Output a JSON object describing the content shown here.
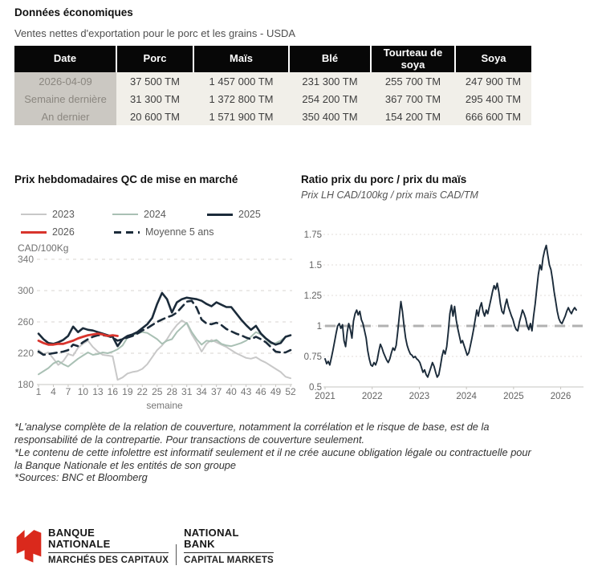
{
  "page": {
    "title": "Données économiques",
    "subtitle": "Ventes nettes d'exportation pour le porc et les grains - USDA"
  },
  "table": {
    "headers": [
      "Date",
      "Porc",
      "Maïs",
      "Blé",
      "Tourteau de soya",
      "Soya"
    ],
    "rows": [
      [
        "2026-04-09",
        "37 500 TM",
        "1 457 000 TM",
        "231 300 TM",
        "255 700 TM",
        "247 900 TM"
      ],
      [
        "Semaine dernière",
        "31 300 TM",
        "1 372 800 TM",
        "254 200 TM",
        "367 700 TM",
        "295 400 TM"
      ],
      [
        "An dernier",
        "20 600 TM",
        "1 571 900 TM",
        "350 400 TM",
        "154 200 TM",
        "666 600 TM"
      ]
    ]
  },
  "chart_data": [
    {
      "type": "line",
      "title": "Prix hebdomadaires QC de mise en marché",
      "ylabel": "CAD/100Kg",
      "xlabel": "semaine",
      "ylim": [
        180,
        340
      ],
      "xlim": [
        1,
        52
      ],
      "yticks": [
        "180",
        "220",
        "260",
        "300",
        "340"
      ],
      "xticks": [
        1,
        4,
        7,
        10,
        13,
        16,
        19,
        22,
        25,
        28,
        31,
        34,
        37,
        40,
        43,
        46,
        49,
        52
      ],
      "grid": "dashed-horizontal",
      "legend_position": "top",
      "series": [
        {
          "name": "2023",
          "color": "#c8c8c8",
          "width": 2,
          "x_start": 1,
          "x_step": 1,
          "values": [
            224,
            219,
            221,
            213,
            205,
            210,
            219,
            217,
            227,
            232,
            236,
            228,
            222,
            218,
            217,
            216,
            186,
            189,
            194,
            196,
            197,
            200,
            206,
            215,
            224,
            230,
            238,
            248,
            256,
            262,
            258,
            244,
            234,
            222,
            232,
            237,
            234,
            231,
            228,
            224,
            220,
            217,
            214,
            213,
            215,
            211,
            208,
            204,
            200,
            196,
            190,
            188
          ]
        },
        {
          "name": "2024",
          "color": "#a9c0b4",
          "width": 2,
          "x_start": 1,
          "x_step": 1,
          "values": [
            193,
            197,
            201,
            207,
            210,
            206,
            203,
            208,
            213,
            217,
            221,
            218,
            219,
            221,
            220,
            222,
            225,
            230,
            240,
            243,
            245,
            247,
            246,
            242,
            238,
            232,
            236,
            238,
            247,
            253,
            259,
            247,
            238,
            231,
            236,
            235,
            237,
            232,
            230,
            229,
            231,
            233,
            236,
            241,
            247,
            244,
            238,
            232,
            233,
            236,
            241,
            243
          ]
        },
        {
          "name": "2025",
          "color": "#1b2b3a",
          "width": 2.6,
          "x_start": 1,
          "x_step": 1,
          "values": [
            245,
            238,
            233,
            232,
            234,
            237,
            242,
            254,
            247,
            252,
            250,
            249,
            247,
            245,
            243,
            241,
            229,
            238,
            242,
            244,
            247,
            252,
            257,
            265,
            283,
            297,
            289,
            272,
            285,
            289,
            291,
            290,
            289,
            287,
            283,
            280,
            285,
            282,
            279,
            279,
            271,
            263,
            256,
            250,
            255,
            245,
            239,
            234,
            231,
            233,
            241,
            243
          ]
        },
        {
          "name": "Moyenne 5 ans",
          "color": "#1b2b3a",
          "width": 2.6,
          "dash": "9 6",
          "x_start": 1,
          "x_step": 1,
          "values": [
            222,
            218,
            219,
            220,
            221,
            222,
            224,
            231,
            229,
            234,
            238,
            241,
            243,
            243,
            242,
            240,
            236,
            238,
            240,
            242,
            245,
            249,
            252,
            256,
            260,
            263,
            266,
            268,
            272,
            279,
            286,
            287,
            278,
            263,
            258,
            257,
            259,
            256,
            251,
            248,
            245,
            243,
            240,
            238,
            241,
            238,
            234,
            228,
            222,
            221,
            221,
            224
          ]
        },
        {
          "name": "2026",
          "color": "#d8342c",
          "width": 2.8,
          "x_start": 1,
          "x_step": 1,
          "values": [
            236,
            233,
            231,
            231,
            232,
            232,
            234,
            236,
            239,
            241,
            243,
            244,
            245,
            244,
            242,
            243,
            242
          ]
        }
      ]
    },
    {
      "type": "line",
      "title": "Ratio prix du porc / prix du maïs",
      "subtitle": "Prix LH CAD/100kg / prix maïs CAD/TM",
      "ylim": [
        0.5,
        1.75
      ],
      "xlim": [
        2021,
        2026.45
      ],
      "yticks": [
        "0.5",
        "0.75",
        "1",
        "1.25",
        "1.5",
        "1.75"
      ],
      "xticks": [
        2021,
        2022,
        2023,
        2024,
        2025,
        2026
      ],
      "grid": "dotted-horizontal",
      "ref_line": {
        "y": 1,
        "color": "#b1b1b1"
      },
      "series": [
        {
          "name": "ratio",
          "color": "#1b2b3a",
          "width": 1.9,
          "x_start": 2021,
          "x_end": 2026.33,
          "values": [
            0.73,
            0.69,
            0.71,
            0.68,
            0.74,
            0.8,
            0.87,
            0.94,
            1.0,
            1.02,
            0.98,
            1.01,
            0.88,
            0.83,
            0.95,
            1.02,
            0.97,
            0.9,
            1.04,
            1.1,
            1.13,
            1.09,
            1.12,
            1.05,
            1.02,
            0.96,
            0.9,
            0.8,
            0.73,
            0.68,
            0.67,
            0.7,
            0.68,
            0.72,
            0.79,
            0.85,
            0.82,
            0.78,
            0.75,
            0.72,
            0.7,
            0.73,
            0.78,
            0.82,
            0.8,
            0.84,
            0.95,
            1.08,
            1.2,
            1.12,
            1.0,
            0.9,
            0.84,
            0.8,
            0.77,
            0.76,
            0.74,
            0.75,
            0.73,
            0.72,
            0.7,
            0.66,
            0.62,
            0.64,
            0.6,
            0.58,
            0.62,
            0.66,
            0.7,
            0.67,
            0.62,
            0.58,
            0.6,
            0.67,
            0.75,
            0.8,
            0.77,
            0.83,
            0.95,
            1.1,
            1.17,
            1.08,
            1.16,
            1.05,
            0.98,
            0.92,
            0.86,
            0.88,
            0.84,
            0.8,
            0.76,
            0.78,
            0.84,
            0.9,
            0.97,
            1.05,
            1.13,
            1.08,
            1.15,
            1.19,
            1.12,
            1.08,
            1.13,
            1.1,
            1.16,
            1.22,
            1.28,
            1.33,
            1.3,
            1.35,
            1.28,
            1.18,
            1.12,
            1.1,
            1.17,
            1.22,
            1.16,
            1.12,
            1.08,
            1.05,
            1.0,
            0.97,
            0.96,
            1.03,
            1.08,
            1.13,
            1.1,
            1.06,
            1.0,
            0.97,
            1.02,
            0.96,
            1.08,
            1.18,
            1.3,
            1.42,
            1.5,
            1.46,
            1.56,
            1.62,
            1.66,
            1.58,
            1.5,
            1.46,
            1.38,
            1.28,
            1.2,
            1.12,
            1.06,
            1.03,
            1.02,
            1.05,
            1.08,
            1.12,
            1.15,
            1.12,
            1.1,
            1.13,
            1.15,
            1.13
          ]
        }
      ]
    }
  ],
  "footnotes": [
    "*L'analyse complète de la relation de couverture, notamment la corrélation et le risque de base, est de la responsabilité de la contrepartie. Pour transactions de couverture seulement.",
    "*Le contenu de cette infolettre est informatif seulement et il ne crée aucune obligation légale ou contractuelle pour la Banque Nationale et les entités de son groupe",
    "*Sources: BNC et Bloomberg"
  ],
  "logo": {
    "brand_red": "#da291c",
    "fr_line1": "BANQUE",
    "fr_line2": "NATIONALE",
    "fr_sub": "MARCHÉS DES CAPITAUX",
    "en_line1": "NATIONAL",
    "en_line2": "BANK",
    "en_sub": "CAPITAL MARKETS"
  }
}
